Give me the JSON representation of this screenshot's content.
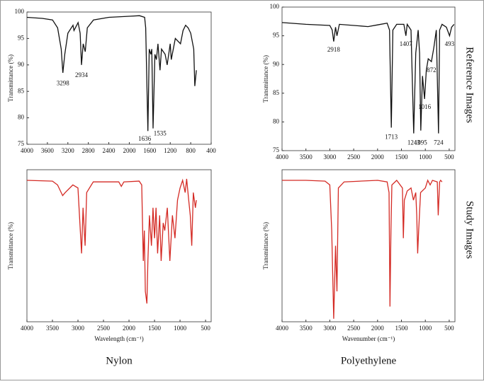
{
  "chart_data": [
    {
      "type": "line",
      "y_label": "Transmittance (%)",
      "xlim": [
        4000,
        400
      ],
      "ylim": [
        75,
        100
      ],
      "xticks": [
        4000,
        3600,
        3200,
        2800,
        2400,
        2000,
        1600,
        1200,
        800,
        400
      ],
      "yticks": [
        75,
        80,
        85,
        90,
        95,
        100
      ],
      "color": "#111111",
      "x": [
        4000,
        3700,
        3500,
        3400,
        3330,
        3298,
        3260,
        3200,
        3100,
        3080,
        3000,
        2960,
        2934,
        2900,
        2860,
        2820,
        2700,
        2400,
        2000,
        1800,
        1700,
        1680,
        1636,
        1610,
        1580,
        1560,
        1535,
        1500,
        1470,
        1440,
        1400,
        1370,
        1300,
        1260,
        1200,
        1180,
        1100,
        1000,
        950,
        900,
        850,
        800,
        740,
        720,
        690
      ],
      "values": [
        99,
        98.8,
        98.5,
        97,
        93,
        88.5,
        92,
        96,
        97.5,
        96.5,
        98,
        96,
        90,
        94,
        92.5,
        97,
        98.5,
        99,
        99.2,
        99.3,
        99,
        97,
        77.5,
        93,
        92,
        93,
        78,
        92,
        91,
        94,
        89,
        93,
        92,
        90,
        94,
        91,
        95,
        94,
        96.5,
        97.5,
        97,
        96,
        93,
        86,
        89
      ],
      "annotations": [
        {
          "text": "3298",
          "x": 3298,
          "y": 87
        },
        {
          "text": "2934",
          "x": 2934,
          "y": 88.5
        },
        {
          "text": "1636",
          "x": 1700,
          "y": 76.5
        },
        {
          "text": "1535",
          "x": 1400,
          "y": 77.5
        }
      ]
    },
    {
      "type": "line",
      "y_label": "Transmittance (%)",
      "xlim": [
        4000,
        380
      ],
      "ylim": [
        75,
        100
      ],
      "xticks": [
        4000,
        3500,
        3000,
        2500,
        2000,
        1500,
        1000,
        500
      ],
      "yticks": [
        75,
        80,
        85,
        90,
        95,
        100
      ],
      "color": "#111111",
      "x": [
        4000,
        3500,
        3000,
        2950,
        2918,
        2880,
        2850,
        2800,
        2200,
        2000,
        1800,
        1750,
        1713,
        1680,
        1600,
        1450,
        1407,
        1380,
        1300,
        1243,
        1200,
        1150,
        1120,
        1095,
        1060,
        1016,
        980,
        940,
        872,
        820,
        770,
        724,
        700,
        650,
        560,
        493,
        450,
        400
      ],
      "values": [
        97.3,
        97,
        96.8,
        96,
        94,
        96.5,
        95,
        97,
        96.6,
        96.9,
        97.2,
        96,
        79,
        96,
        97,
        97,
        95,
        97,
        96,
        78,
        92,
        96,
        92,
        78.5,
        88,
        84,
        89,
        91,
        90.5,
        93,
        96,
        78,
        96,
        97,
        96.5,
        95,
        96.5,
        97
      ],
      "annotations": [
        {
          "text": "2918",
          "x": 2918,
          "y": 93
        },
        {
          "text": "1713",
          "x": 1713,
          "y": 77.8
        },
        {
          "text": "1407",
          "x": 1407,
          "y": 94
        },
        {
          "text": "1243",
          "x": 1243,
          "y": 76.8
        },
        {
          "text": "1095",
          "x": 1095,
          "y": 76.8
        },
        {
          "text": "1016",
          "x": 1016,
          "y": 83
        },
        {
          "text": "872",
          "x": 872,
          "y": 89.4
        },
        {
          "text": "724",
          "x": 724,
          "y": 76.8
        },
        {
          "text": "493",
          "x": 493,
          "y": 94
        }
      ]
    },
    {
      "type": "line",
      "y_label": "Transmittance (%)",
      "x_label": "Wavelength (cm⁻¹)",
      "caption": "Nylon",
      "xlim": [
        4000,
        390
      ],
      "ylim": [
        0,
        100
      ],
      "xticks": [
        4000,
        3500,
        3000,
        2500,
        2000,
        1500,
        1000,
        500
      ],
      "color": "#d42a24",
      "x": [
        4000,
        3500,
        3400,
        3300,
        3250,
        3100,
        3000,
        2930,
        2900,
        2860,
        2830,
        2700,
        2200,
        2150,
        2100,
        1800,
        1750,
        1720,
        1700,
        1680,
        1650,
        1630,
        1600,
        1560,
        1530,
        1500,
        1470,
        1440,
        1400,
        1370,
        1330,
        1300,
        1250,
        1200,
        1150,
        1100,
        1050,
        1000,
        950,
        900,
        870,
        830,
        800,
        770,
        740,
        700,
        680
      ],
      "values": [
        93,
        92.5,
        90,
        83,
        85,
        90,
        88,
        45,
        75,
        50,
        85,
        92,
        92,
        89,
        92,
        92.5,
        90,
        40,
        60,
        20,
        12,
        40,
        70,
        50,
        75,
        55,
        75,
        45,
        70,
        40,
        65,
        60,
        75,
        40,
        70,
        55,
        80,
        88,
        93,
        85,
        94,
        80,
        70,
        50,
        85,
        75,
        80
      ]
    },
    {
      "type": "line",
      "y_label": "Transmittance (%)",
      "x_label": "Wavenumber (cm⁻¹)",
      "caption": "Polyethylene",
      "xlim": [
        4000,
        380
      ],
      "ylim": [
        0,
        100
      ],
      "xticks": [
        4000,
        3500,
        3000,
        2500,
        2000,
        1500,
        1000,
        500
      ],
      "color": "#d42a24",
      "x": [
        4000,
        3500,
        3100,
        3000,
        2960,
        2918,
        2880,
        2850,
        2820,
        2700,
        2000,
        1800,
        1760,
        1740,
        1720,
        1700,
        1600,
        1480,
        1460,
        1440,
        1380,
        1300,
        1250,
        1200,
        1180,
        1160,
        1140,
        1100,
        1000,
        950,
        900,
        850,
        750,
        730,
        700,
        680,
        650
      ],
      "values": [
        93,
        93,
        92.5,
        90,
        60,
        2,
        50,
        20,
        88,
        92,
        93,
        92,
        85,
        10,
        60,
        90,
        93,
        88,
        55,
        80,
        86,
        88,
        80,
        85,
        70,
        45,
        60,
        85,
        88,
        93,
        90,
        93,
        92,
        70,
        92,
        93,
        92
      ]
    }
  ],
  "side_labels": [
    "Reference Images",
    "Study Images"
  ]
}
